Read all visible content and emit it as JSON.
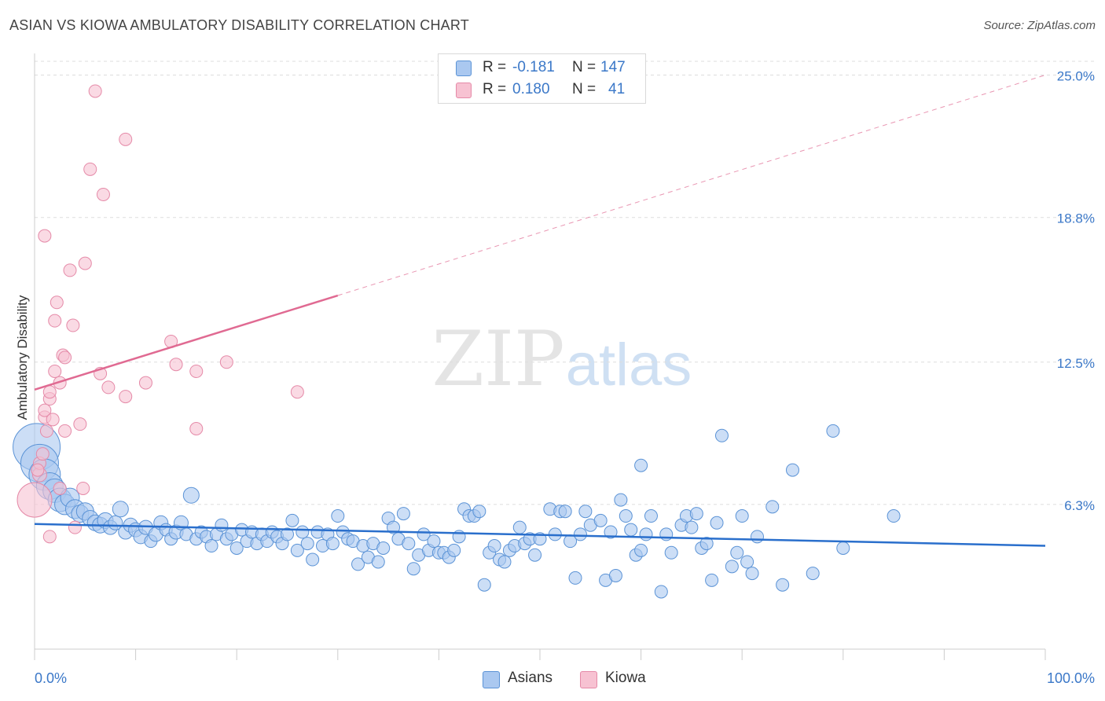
{
  "title": "ASIAN VS KIOWA AMBULATORY DISABILITY CORRELATION CHART",
  "source": "Source: ZipAtlas.com",
  "watermark": {
    "zip": "ZIP",
    "atlas": "atlas"
  },
  "colors": {
    "asian_fill": "#aac8f0",
    "asian_stroke": "#5b93d6",
    "asian_line": "#2a6fcc",
    "kiowa_fill": "#f7c2d2",
    "kiowa_stroke": "#e58aa8",
    "kiowa_line": "#e06a92",
    "tick_label": "#3b78c8",
    "grid": "#dddddd"
  },
  "legend": {
    "asian": {
      "r_label": "R =",
      "r_value": "-0.181",
      "n_label": "N =",
      "n_value": "147"
    },
    "kiowa": {
      "r_label": "R =",
      "r_value": "0.180",
      "n_label": "N =",
      "n_value": "41"
    }
  },
  "bottom_legend": {
    "asian": "Asians",
    "kiowa": "Kiowa"
  },
  "chart_data": {
    "type": "scatter",
    "title": "ASIAN VS KIOWA AMBULATORY DISABILITY CORRELATION CHART",
    "xlabel": "",
    "ylabel": "Ambulatory Disability",
    "x_tick_labels": [
      "0.0%",
      "100.0%"
    ],
    "y_tick_labels": [
      "6.3%",
      "12.5%",
      "18.8%",
      "25.0%"
    ],
    "y_ticks": [
      6.3,
      12.5,
      18.8,
      25.0
    ],
    "xlim": [
      0,
      100
    ],
    "ylim": [
      0,
      25.6
    ],
    "grid": "horizontal dashed",
    "legend_position": "top-center",
    "series": [
      {
        "name": "Asians",
        "trend": {
          "x": [
            0,
            100
          ],
          "y": [
            5.45,
            4.5
          ],
          "style": "solid"
        },
        "points": [
          [
            0.2,
            8.8,
            30
          ],
          [
            0.5,
            8.1,
            24
          ],
          [
            1.0,
            7.6,
            20
          ],
          [
            1.5,
            7.1,
            17
          ],
          [
            2.0,
            6.9,
            15
          ],
          [
            2.5,
            6.5,
            15
          ],
          [
            3.0,
            6.3,
            13
          ],
          [
            3.5,
            6.6,
            12
          ],
          [
            4.0,
            6.1,
            12
          ],
          [
            4.5,
            5.9,
            11
          ],
          [
            5.0,
            6.0,
            11
          ],
          [
            5.5,
            5.7,
            10
          ],
          [
            6.0,
            5.5,
            10
          ],
          [
            6.5,
            5.4,
            10
          ],
          [
            7.0,
            5.6,
            10
          ],
          [
            7.5,
            5.3,
            9
          ],
          [
            8.0,
            5.5,
            9
          ],
          [
            8.5,
            6.1,
            10
          ],
          [
            9.0,
            5.1,
            9
          ],
          [
            9.5,
            5.4,
            9
          ],
          [
            10,
            5.2,
            9
          ],
          [
            10.5,
            4.9,
            9
          ],
          [
            11,
            5.3,
            9
          ],
          [
            11.5,
            4.7,
            8
          ],
          [
            12,
            5.0,
            9
          ],
          [
            12.5,
            5.5,
            9
          ],
          [
            13,
            5.2,
            8
          ],
          [
            13.5,
            4.8,
            8
          ],
          [
            14,
            5.1,
            9
          ],
          [
            14.5,
            5.5,
            9
          ],
          [
            15,
            5.0,
            8
          ],
          [
            15.5,
            6.7,
            10
          ],
          [
            16,
            4.8,
            8
          ],
          [
            16.5,
            5.1,
            8
          ],
          [
            17,
            4.9,
            8
          ],
          [
            17.5,
            4.5,
            8
          ],
          [
            18,
            5.0,
            8
          ],
          [
            18.5,
            5.4,
            8
          ],
          [
            19,
            4.8,
            8
          ],
          [
            19.5,
            5.0,
            8
          ],
          [
            20,
            4.4,
            8
          ],
          [
            20.5,
            5.2,
            8
          ],
          [
            21,
            4.7,
            8
          ],
          [
            21.5,
            5.1,
            8
          ],
          [
            22,
            4.6,
            8
          ],
          [
            22.5,
            5.0,
            8
          ],
          [
            23,
            4.7,
            8
          ],
          [
            23.5,
            5.1,
            8
          ],
          [
            24,
            4.9,
            8
          ],
          [
            24.5,
            4.6,
            8
          ],
          [
            25,
            5.0,
            8
          ],
          [
            25.5,
            5.6,
            8
          ],
          [
            26,
            4.3,
            8
          ],
          [
            26.5,
            5.1,
            8
          ],
          [
            27,
            4.6,
            8
          ],
          [
            27.5,
            3.9,
            8
          ],
          [
            28,
            5.1,
            8
          ],
          [
            28.5,
            4.5,
            8
          ],
          [
            29,
            5.0,
            8
          ],
          [
            29.5,
            4.6,
            8
          ],
          [
            30,
            5.8,
            8
          ],
          [
            30.5,
            5.1,
            8
          ],
          [
            31,
            4.8,
            8
          ],
          [
            31.5,
            4.7,
            8
          ],
          [
            32,
            3.7,
            8
          ],
          [
            32.5,
            4.5,
            8
          ],
          [
            33,
            4.0,
            8
          ],
          [
            33.5,
            4.6,
            8
          ],
          [
            34,
            3.8,
            8
          ],
          [
            34.5,
            4.4,
            8
          ],
          [
            35,
            5.7,
            8
          ],
          [
            35.5,
            5.3,
            8
          ],
          [
            36,
            4.8,
            8
          ],
          [
            36.5,
            5.9,
            8
          ],
          [
            37,
            4.6,
            8
          ],
          [
            37.5,
            3.5,
            8
          ],
          [
            38,
            4.1,
            8
          ],
          [
            38.5,
            5.0,
            8
          ],
          [
            39,
            4.3,
            8
          ],
          [
            39.5,
            4.7,
            8
          ],
          [
            40,
            4.2,
            8
          ],
          [
            40.5,
            4.2,
            8
          ],
          [
            41,
            4.0,
            8
          ],
          [
            41.5,
            4.3,
            8
          ],
          [
            42,
            4.9,
            8
          ],
          [
            42.5,
            6.1,
            8
          ],
          [
            43,
            5.8,
            8
          ],
          [
            43.5,
            5.8,
            8
          ],
          [
            44,
            6.0,
            8
          ],
          [
            44.5,
            2.8,
            8
          ],
          [
            45,
            4.2,
            8
          ],
          [
            45.5,
            4.5,
            8
          ],
          [
            46,
            3.9,
            8
          ],
          [
            46.5,
            3.8,
            8
          ],
          [
            47,
            4.3,
            8
          ],
          [
            47.5,
            4.5,
            8
          ],
          [
            48,
            5.3,
            8
          ],
          [
            48.5,
            4.6,
            8
          ],
          [
            49,
            4.8,
            8
          ],
          [
            49.5,
            4.1,
            8
          ],
          [
            50,
            4.8,
            8
          ],
          [
            51,
            6.1,
            8
          ],
          [
            51.5,
            5.0,
            8
          ],
          [
            52,
            6.0,
            8
          ],
          [
            52.5,
            6.0,
            8
          ],
          [
            53,
            4.7,
            8
          ],
          [
            53.5,
            3.1,
            8
          ],
          [
            54,
            5.0,
            8
          ],
          [
            54.5,
            6.0,
            8
          ],
          [
            55,
            5.4,
            8
          ],
          [
            56,
            5.6,
            8
          ],
          [
            56.5,
            3.0,
            8
          ],
          [
            57,
            5.1,
            8
          ],
          [
            57.5,
            3.2,
            8
          ],
          [
            58,
            6.5,
            8
          ],
          [
            58.5,
            5.8,
            8
          ],
          [
            59,
            5.2,
            8
          ],
          [
            59.5,
            4.1,
            8
          ],
          [
            60,
            4.3,
            8
          ],
          [
            60.5,
            5.0,
            8
          ],
          [
            61,
            5.8,
            8
          ],
          [
            62,
            2.5,
            8
          ],
          [
            62.5,
            5.0,
            8
          ],
          [
            63,
            4.2,
            8
          ],
          [
            64,
            5.4,
            8
          ],
          [
            64.5,
            5.8,
            8
          ],
          [
            65,
            5.3,
            8
          ],
          [
            65.5,
            5.9,
            8
          ],
          [
            66,
            4.4,
            8
          ],
          [
            66.5,
            4.6,
            8
          ],
          [
            67,
            3.0,
            8
          ],
          [
            67.5,
            5.5,
            8
          ],
          [
            68,
            9.3,
            8
          ],
          [
            69,
            3.6,
            8
          ],
          [
            69.5,
            4.2,
            8
          ],
          [
            70,
            5.8,
            8
          ],
          [
            70.5,
            3.8,
            8
          ],
          [
            71,
            3.3,
            8
          ],
          [
            71.5,
            4.9,
            8
          ],
          [
            73,
            6.2,
            8
          ],
          [
            74,
            2.8,
            8
          ],
          [
            75,
            7.8,
            8
          ],
          [
            77,
            3.3,
            8
          ],
          [
            79,
            9.5,
            8
          ],
          [
            80,
            4.4,
            8
          ],
          [
            85,
            5.8,
            8
          ],
          [
            60,
            8.0,
            8
          ]
        ]
      },
      {
        "name": "Kiowa",
        "trend": {
          "x": [
            0,
            30
          ],
          "y": [
            11.3,
            15.4
          ],
          "style": "solid",
          "extended": {
            "x": [
              30,
              100
            ],
            "y": [
              15.4,
              25.0
            ],
            "style": "dashed"
          }
        },
        "points": [
          [
            0.0,
            6.5,
            22
          ],
          [
            0.5,
            7.6,
            9
          ],
          [
            0.5,
            8.1,
            8
          ],
          [
            0.8,
            8.5,
            8
          ],
          [
            1.0,
            10.1,
            8
          ],
          [
            1.0,
            10.4,
            8
          ],
          [
            1.2,
            9.5,
            8
          ],
          [
            1.5,
            10.9,
            8
          ],
          [
            1.5,
            11.2,
            8
          ],
          [
            1.5,
            4.9,
            8
          ],
          [
            1.8,
            10.0,
            8
          ],
          [
            2.0,
            12.1,
            8
          ],
          [
            2.0,
            14.3,
            8
          ],
          [
            2.2,
            15.1,
            8
          ],
          [
            2.5,
            11.6,
            8
          ],
          [
            2.5,
            7.0,
            8
          ],
          [
            2.8,
            12.8,
            8
          ],
          [
            3.0,
            12.7,
            8
          ],
          [
            3.0,
            9.5,
            8
          ],
          [
            3.5,
            16.5,
            8
          ],
          [
            3.8,
            14.1,
            8
          ],
          [
            4.0,
            5.3,
            8
          ],
          [
            4.5,
            9.8,
            8
          ],
          [
            4.8,
            7.0,
            8
          ],
          [
            5.0,
            16.8,
            8
          ],
          [
            5.5,
            20.9,
            8
          ],
          [
            6.0,
            24.3,
            8
          ],
          [
            6.5,
            12.0,
            8
          ],
          [
            6.8,
            19.8,
            8
          ],
          [
            7.3,
            11.4,
            8
          ],
          [
            9.0,
            11.0,
            8
          ],
          [
            9.0,
            22.2,
            8
          ],
          [
            11,
            11.6,
            8
          ],
          [
            13.5,
            13.4,
            8
          ],
          [
            14.0,
            12.4,
            8
          ],
          [
            16,
            9.6,
            8
          ],
          [
            16,
            12.1,
            8
          ],
          [
            19,
            12.5,
            8
          ],
          [
            26,
            11.2,
            8
          ],
          [
            1.0,
            18.0,
            8
          ],
          [
            0.3,
            7.8,
            8
          ]
        ]
      }
    ]
  }
}
